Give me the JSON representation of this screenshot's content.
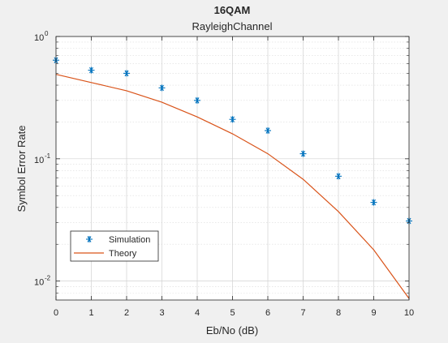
{
  "figure": {
    "title": "16QAM",
    "subtitle": "RayleighChannel",
    "background": "#f0f0f0",
    "axes_background": "#ffffff"
  },
  "chart_data": {
    "type": "line",
    "title": "16QAM",
    "subtitle": "RayleighChannel",
    "xlabel": "Eb/No (dB)",
    "ylabel": "Symbol Error Rate",
    "xlim": [
      0,
      10
    ],
    "ylim": [
      0.007,
      1
    ],
    "yscale": "log",
    "grid": true,
    "minor_grid": true,
    "x_ticks": [
      0,
      1,
      2,
      3,
      4,
      5,
      6,
      7,
      8,
      9,
      10
    ],
    "x_tick_labels": [
      "0",
      "1",
      "2",
      "3",
      "4",
      "5",
      "6",
      "7",
      "8",
      "9",
      "10"
    ],
    "y_ticks": [
      {
        "value": 1,
        "base": "10",
        "exp": "0"
      },
      {
        "value": 0.1,
        "base": "10",
        "exp": "-1"
      },
      {
        "value": 0.01,
        "base": "10",
        "exp": "-2"
      }
    ],
    "legend_position": "bottom-left",
    "series": [
      {
        "name": "Simulation",
        "style": "markers",
        "marker": "*",
        "color": "#0072bd",
        "x": [
          0,
          1,
          2,
          3,
          4,
          5,
          6,
          7,
          8,
          9,
          10
        ],
        "y": [
          0.64,
          0.53,
          0.5,
          0.38,
          0.3,
          0.21,
          0.17,
          0.11,
          0.072,
          0.044,
          0.031
        ]
      },
      {
        "name": "Theory",
        "style": "line",
        "color": "#d95319",
        "x": [
          0,
          1,
          2,
          3,
          4,
          5,
          6,
          7,
          8,
          9,
          10
        ],
        "y": [
          0.49,
          0.42,
          0.36,
          0.29,
          0.22,
          0.16,
          0.11,
          0.068,
          0.037,
          0.018,
          0.0072
        ]
      }
    ]
  }
}
